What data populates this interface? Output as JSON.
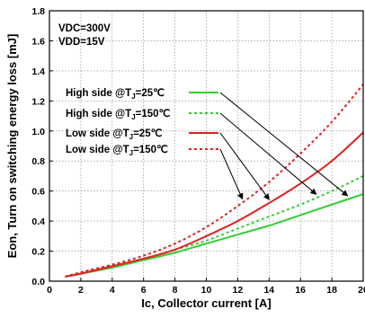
{
  "chart_data": {
    "type": "line",
    "xlabel": "Ic, Collector current [A]",
    "ylabel": "Eon, Turn on switching energy loss [mJ]",
    "xlim": [
      0,
      20
    ],
    "ylim": [
      0,
      1.8
    ],
    "xticks": [
      0,
      2,
      4,
      6,
      8,
      10,
      12,
      14,
      16,
      18,
      20
    ],
    "yticks": [
      0.0,
      0.2,
      0.4,
      0.6,
      0.8,
      1.0,
      1.2,
      1.4,
      1.6,
      1.8
    ],
    "xtick_labels": [
      "0",
      "2",
      "4",
      "6",
      "8",
      "10",
      "12",
      "14",
      "16",
      "18",
      "20"
    ],
    "ytick_labels": [
      "0.0",
      "0.2",
      "0.4",
      "0.6",
      "0.8",
      "1.0",
      "1.2",
      "1.4",
      "1.6",
      "1.8"
    ],
    "grid": true,
    "conditions": [
      "VDC=300V",
      "VDD=15V"
    ],
    "legend_position": "top-left",
    "series": [
      {
        "name": "High side @TJ=25℃",
        "color": "#33cc33",
        "style": "solid",
        "x": [
          1,
          2,
          4,
          6,
          8,
          10,
          12,
          14,
          16,
          18,
          20
        ],
        "y": [
          0.03,
          0.05,
          0.09,
          0.14,
          0.19,
          0.25,
          0.31,
          0.37,
          0.44,
          0.51,
          0.58
        ]
      },
      {
        "name": "High side @TJ=150℃",
        "color": "#33cc33",
        "style": "dotted",
        "x": [
          1,
          2,
          4,
          6,
          8,
          10,
          12,
          14,
          16,
          18,
          20
        ],
        "y": [
          0.03,
          0.05,
          0.1,
          0.15,
          0.21,
          0.27,
          0.35,
          0.43,
          0.51,
          0.6,
          0.7
        ]
      },
      {
        "name": "Low side @TJ=25℃",
        "color": "#e02020",
        "style": "solid",
        "x": [
          1,
          2,
          4,
          6,
          8,
          10,
          12,
          14,
          16,
          18,
          20
        ],
        "y": [
          0.03,
          0.05,
          0.1,
          0.15,
          0.21,
          0.3,
          0.4,
          0.52,
          0.65,
          0.8,
          0.99
        ]
      },
      {
        "name": "Low side @TJ=150℃",
        "color": "#e02020",
        "style": "dotted",
        "x": [
          1,
          2,
          4,
          6,
          8,
          10,
          12,
          14,
          16,
          18,
          20
        ],
        "y": [
          0.03,
          0.06,
          0.11,
          0.17,
          0.25,
          0.36,
          0.5,
          0.66,
          0.85,
          1.06,
          1.31
        ]
      }
    ],
    "legend_labels": [
      {
        "main": "High side @T",
        "sub": "J",
        "tail": "=25℃"
      },
      {
        "main": "High side @T",
        "sub": "J",
        "tail": "=150℃"
      },
      {
        "main": "Low side @T",
        "sub": "J",
        "tail": "=25℃"
      },
      {
        "main": "Low side @T",
        "sub": "J",
        "tail": "=150℃"
      }
    ],
    "annotation_arrows_target_x": [
      19,
      17,
      14,
      12.3
    ]
  }
}
